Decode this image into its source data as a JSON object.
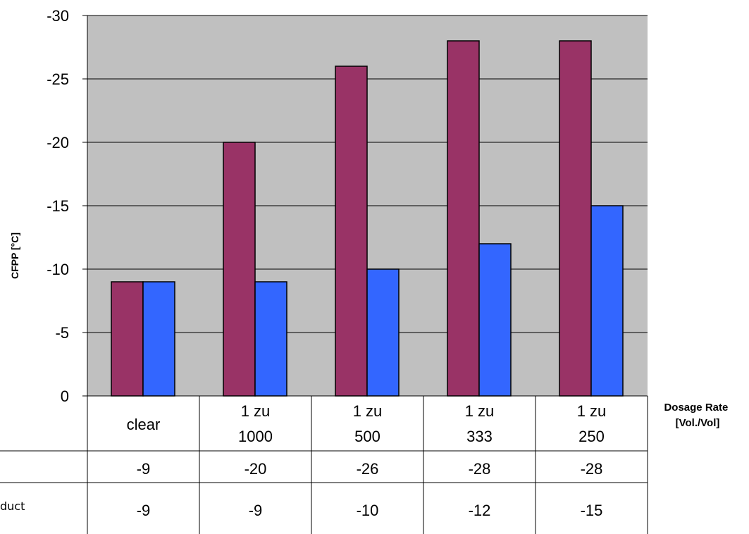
{
  "chart_data": {
    "type": "bar",
    "ylabel": "CFPP [°C]",
    "xlabel_lines": [
      "Dosage Rate",
      "[Vol./Vol]"
    ],
    "categories": [
      [
        "clear"
      ],
      [
        "1 zu",
        "1000"
      ],
      [
        "1 zu",
        "500"
      ],
      [
        "1 zu",
        "333"
      ],
      [
        "1 zu",
        "250"
      ]
    ],
    "series": [
      {
        "label": "",
        "color": "#993366",
        "values": [
          -9,
          -20,
          -26,
          -28,
          -28
        ],
        "table_values": [
          "-9",
          "-20",
          "-26",
          "-28",
          "-28"
        ]
      },
      {
        "label": "duct",
        "color": "#3366ff",
        "values": [
          -9,
          -9,
          -10,
          -12,
          -15
        ],
        "table_values": [
          "-9",
          "-9",
          "-10",
          "-12",
          "-15"
        ]
      }
    ],
    "ylim": [
      0,
      -30
    ],
    "yticks": [
      0,
      -5,
      -10,
      -15,
      -20,
      -25,
      -30
    ],
    "ytick_labels": [
      "0",
      "-5",
      "-10",
      "-15",
      "-20",
      "-25",
      "-30"
    ],
    "grid": true,
    "plot_background": "#c0c0c0",
    "legend": "data table below chart"
  }
}
